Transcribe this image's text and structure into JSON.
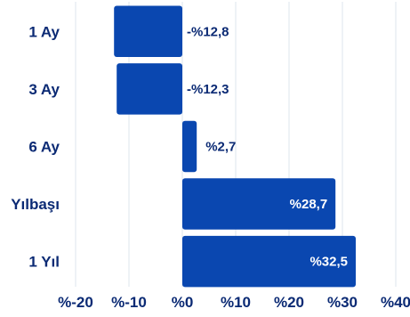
{
  "chart_data": {
    "type": "bar",
    "orientation": "horizontal",
    "categories": [
      "1 Ay",
      "3 Ay",
      "6 Ay",
      "Yılbaşı",
      "1 Yıl"
    ],
    "values": [
      -12.8,
      -12.3,
      2.7,
      28.7,
      32.5
    ],
    "value_labels": [
      "-%12,8",
      "-%12,3",
      "%2,7",
      "%28,7",
      "%32,5"
    ],
    "x_ticks": [
      -20,
      -10,
      0,
      10,
      20,
      30,
      40
    ],
    "x_tick_labels": [
      "%-20",
      "%-10",
      "%0",
      "%10",
      "%20",
      "%30",
      "%40"
    ],
    "xlim": [
      -20,
      40
    ],
    "grid": true,
    "colors": {
      "bar": "#0a47b0",
      "text": "#0b2a74",
      "grid": "#dde4ec"
    }
  }
}
